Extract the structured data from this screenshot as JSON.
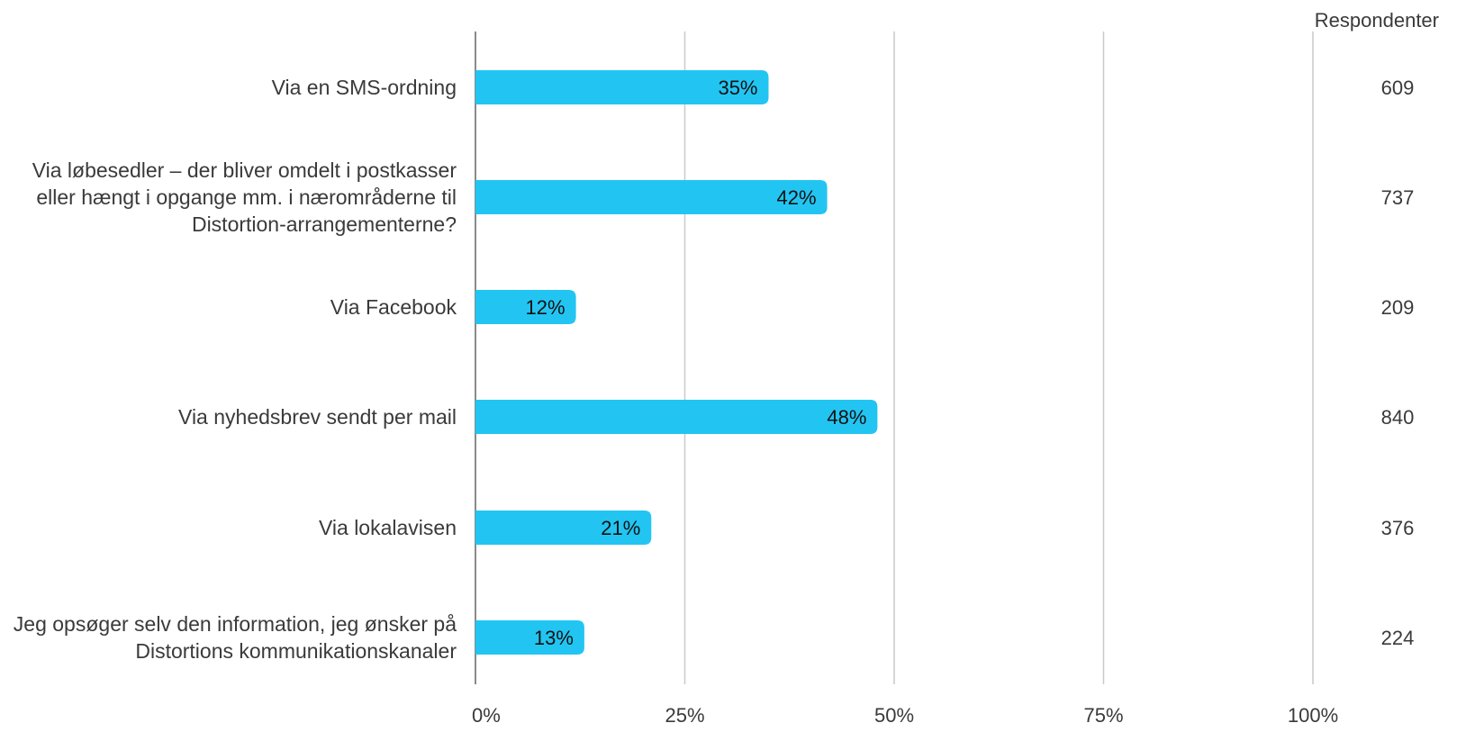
{
  "chart_data": {
    "type": "bar",
    "orientation": "horizontal",
    "categories": [
      [
        "Via en SMS-ordning"
      ],
      [
        "Via løbesedler – der bliver omdelt i postkasser",
        "eller hængt i opgange mm. i nærområderne til",
        "Distortion-arrangementerne?"
      ],
      [
        "Via Facebook"
      ],
      [
        "Via nyhedsbrev sendt per mail"
      ],
      [
        "Via lokalavisen"
      ],
      [
        "Jeg opsøger selv den information, jeg ønsker på",
        "Distortions kommunikationskanaler"
      ]
    ],
    "values": [
      35,
      42,
      12,
      48,
      21,
      13
    ],
    "value_labels": [
      "35%",
      "42%",
      "12%",
      "48%",
      "21%",
      "13%"
    ],
    "respondents_header": "Respondenter",
    "respondents": [
      "609",
      "737",
      "209",
      "840",
      "376",
      "224"
    ],
    "x_ticks": [
      0,
      25,
      50,
      75,
      100
    ],
    "x_tick_labels": [
      "0%",
      "25%",
      "50%",
      "75%",
      "100%"
    ],
    "xlim": [
      0,
      100
    ],
    "grid": true,
    "bar_color": "#22c5f2",
    "gridline_color": "#c9c9c9",
    "axis_color": "#8a8a8a"
  }
}
